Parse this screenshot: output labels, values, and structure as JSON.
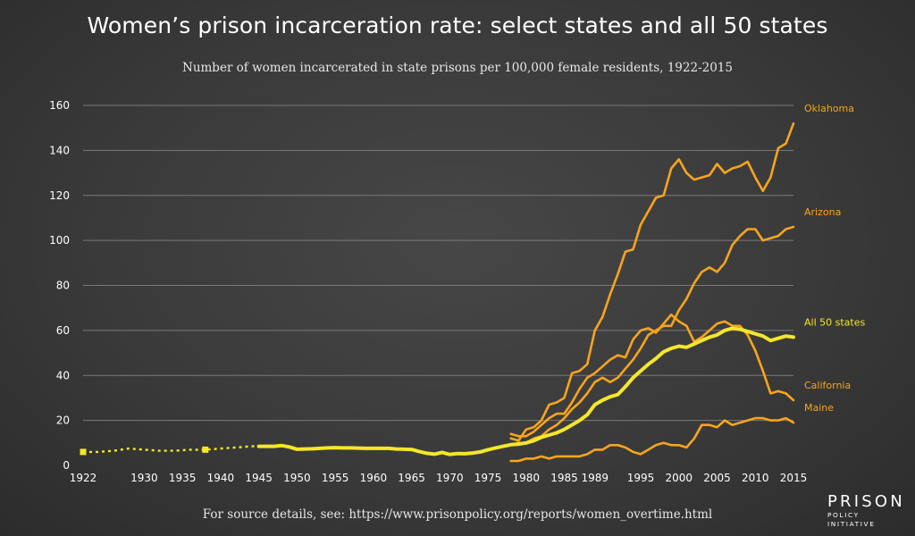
{
  "chart_title": "Women’s prison incarceration rate: select states and all 50 states",
  "chart_subtitle": "Number of women incarcerated in state prisons per 100,000 female residents, 1922-2015",
  "source_note": "For source details, see: https://www.prisonpolicy.org/reports/women_overtime.html",
  "logo": {
    "main": "PRISON",
    "sub": "POLICY INITIATIVE"
  },
  "colors": {
    "all_states": "#f5e72a",
    "states": "#f7a51c",
    "grid": "#7a7a7a"
  },
  "chart_data": {
    "type": "line",
    "xlim": [
      1922,
      2015
    ],
    "ylim": [
      0,
      160
    ],
    "grid": true,
    "x_ticks": [
      1922,
      1930,
      1935,
      1940,
      1945,
      1950,
      1955,
      1960,
      1965,
      1970,
      1975,
      1980,
      1985,
      1989,
      1995,
      2000,
      2005,
      2010,
      2015
    ],
    "y_ticks": [
      0,
      20,
      40,
      60,
      80,
      100,
      120,
      140,
      160
    ],
    "legend": "direct labels at line ends",
    "all_states_gap_markers": [
      [
        1922,
        6
      ],
      [
        1938,
        7
      ]
    ],
    "series": [
      {
        "name": "Oklahoma",
        "key": "states",
        "data": [
          [
            1978,
            12
          ],
          [
            1979,
            11
          ],
          [
            1980,
            16
          ],
          [
            1981,
            17
          ],
          [
            1982,
            20
          ],
          [
            1983,
            27
          ],
          [
            1984,
            28
          ],
          [
            1985,
            30
          ],
          [
            1986,
            41
          ],
          [
            1987,
            42
          ],
          [
            1988,
            45
          ],
          [
            1989,
            60
          ],
          [
            1990,
            66
          ],
          [
            1991,
            76
          ],
          [
            1992,
            85
          ],
          [
            1993,
            95
          ],
          [
            1994,
            96
          ],
          [
            1995,
            107
          ],
          [
            1996,
            113
          ],
          [
            1997,
            119
          ],
          [
            1998,
            120
          ],
          [
            1999,
            132
          ],
          [
            2000,
            136
          ],
          [
            2001,
            130
          ],
          [
            2002,
            127
          ],
          [
            2003,
            128
          ],
          [
            2004,
            129
          ],
          [
            2005,
            134
          ],
          [
            2006,
            130
          ],
          [
            2007,
            132
          ],
          [
            2008,
            133
          ],
          [
            2009,
            135
          ],
          [
            2010,
            128
          ],
          [
            2011,
            122
          ],
          [
            2012,
            128
          ],
          [
            2013,
            141
          ],
          [
            2014,
            143
          ],
          [
            2015,
            152
          ]
        ]
      },
      {
        "name": "Arizona",
        "key": "states",
        "data": [
          [
            1978,
            9
          ],
          [
            1979,
            10
          ],
          [
            1980,
            10
          ],
          [
            1981,
            12
          ],
          [
            1982,
            13
          ],
          [
            1983,
            16
          ],
          [
            1984,
            18
          ],
          [
            1985,
            21
          ],
          [
            1986,
            25
          ],
          [
            1987,
            28
          ],
          [
            1988,
            32
          ],
          [
            1989,
            37
          ],
          [
            1990,
            39
          ],
          [
            1991,
            37
          ],
          [
            1992,
            39
          ],
          [
            1993,
            43
          ],
          [
            1994,
            47
          ],
          [
            1995,
            52
          ],
          [
            1996,
            58
          ],
          [
            1997,
            60
          ],
          [
            1998,
            62
          ],
          [
            1999,
            62
          ],
          [
            2000,
            69
          ],
          [
            2001,
            74
          ],
          [
            2002,
            81
          ],
          [
            2003,
            86
          ],
          [
            2004,
            88
          ],
          [
            2005,
            86
          ],
          [
            2006,
            90
          ],
          [
            2007,
            98
          ],
          [
            2008,
            102
          ],
          [
            2009,
            105
          ],
          [
            2010,
            105
          ],
          [
            2011,
            100
          ],
          [
            2012,
            101
          ],
          [
            2013,
            102
          ],
          [
            2014,
            105
          ],
          [
            2015,
            106
          ]
        ]
      },
      {
        "name": "California",
        "key": "states",
        "data": [
          [
            1978,
            14
          ],
          [
            1979,
            13
          ],
          [
            1980,
            13
          ],
          [
            1981,
            15
          ],
          [
            1982,
            18
          ],
          [
            1983,
            21
          ],
          [
            1984,
            23
          ],
          [
            1985,
            23
          ],
          [
            1986,
            28
          ],
          [
            1987,
            34
          ],
          [
            1988,
            39
          ],
          [
            1989,
            41
          ],
          [
            1990,
            44
          ],
          [
            1991,
            47
          ],
          [
            1992,
            49
          ],
          [
            1993,
            48
          ],
          [
            1994,
            56
          ],
          [
            1995,
            60
          ],
          [
            1996,
            61
          ],
          [
            1997,
            59
          ],
          [
            1998,
            63
          ],
          [
            1999,
            67
          ],
          [
            2000,
            64
          ],
          [
            2001,
            62
          ],
          [
            2002,
            55
          ],
          [
            2003,
            57
          ],
          [
            2004,
            60
          ],
          [
            2005,
            63
          ],
          [
            2006,
            64
          ],
          [
            2007,
            62
          ],
          [
            2008,
            62
          ],
          [
            2009,
            58
          ],
          [
            2010,
            51
          ],
          [
            2011,
            42
          ],
          [
            2012,
            32
          ],
          [
            2013,
            33
          ],
          [
            2014,
            32
          ],
          [
            2015,
            29
          ]
        ]
      },
      {
        "name": "Maine",
        "key": "states",
        "data": [
          [
            1978,
            2
          ],
          [
            1979,
            2
          ],
          [
            1980,
            3
          ],
          [
            1981,
            3
          ],
          [
            1982,
            4
          ],
          [
            1983,
            3
          ],
          [
            1984,
            4
          ],
          [
            1985,
            4
          ],
          [
            1986,
            4
          ],
          [
            1987,
            4
          ],
          [
            1988,
            5
          ],
          [
            1989,
            7
          ],
          [
            1990,
            7
          ],
          [
            1991,
            9
          ],
          [
            1992,
            9
          ],
          [
            1993,
            8
          ],
          [
            1994,
            6
          ],
          [
            1995,
            5
          ],
          [
            1996,
            7
          ],
          [
            1997,
            9
          ],
          [
            1998,
            10
          ],
          [
            1999,
            9
          ],
          [
            2000,
            9
          ],
          [
            2001,
            8
          ],
          [
            2002,
            12
          ],
          [
            2003,
            18
          ],
          [
            2004,
            18
          ],
          [
            2005,
            17
          ],
          [
            2006,
            20
          ],
          [
            2007,
            18
          ],
          [
            2008,
            19
          ],
          [
            2009,
            20
          ],
          [
            2010,
            21
          ],
          [
            2011,
            21
          ],
          [
            2012,
            20
          ],
          [
            2013,
            20
          ],
          [
            2014,
            21
          ],
          [
            2015,
            19
          ]
        ]
      },
      {
        "name": "All 50 states",
        "key": "all_states",
        "dashed_until": 1945,
        "data": [
          [
            1922,
            6
          ],
          [
            1924,
            6
          ],
          [
            1926,
            6.5
          ],
          [
            1928,
            7.5
          ],
          [
            1930,
            7
          ],
          [
            1932,
            6.5
          ],
          [
            1934,
            6.5
          ],
          [
            1936,
            7
          ],
          [
            1938,
            7
          ],
          [
            1940,
            7.5
          ],
          [
            1942,
            8
          ],
          [
            1944,
            8.5
          ],
          [
            1945,
            8.5
          ],
          [
            1946,
            8.5
          ],
          [
            1947,
            8.5
          ],
          [
            1948,
            8.8
          ],
          [
            1949,
            8.2
          ],
          [
            1950,
            7.2
          ],
          [
            1951,
            7.3
          ],
          [
            1952,
            7.4
          ],
          [
            1953,
            7.6
          ],
          [
            1954,
            7.8
          ],
          [
            1955,
            7.9
          ],
          [
            1956,
            7.8
          ],
          [
            1957,
            7.8
          ],
          [
            1958,
            7.7
          ],
          [
            1959,
            7.6
          ],
          [
            1960,
            7.6
          ],
          [
            1961,
            7.6
          ],
          [
            1962,
            7.6
          ],
          [
            1963,
            7.3
          ],
          [
            1964,
            7.2
          ],
          [
            1965,
            7.1
          ],
          [
            1966,
            6.2
          ],
          [
            1967,
            5.4
          ],
          [
            1968,
            5.0
          ],
          [
            1969,
            5.8
          ],
          [
            1970,
            4.9
          ],
          [
            1971,
            5.3
          ],
          [
            1972,
            5.2
          ],
          [
            1973,
            5.5
          ],
          [
            1974,
            6
          ],
          [
            1975,
            7
          ],
          [
            1976,
            7.8
          ],
          [
            1977,
            8.5
          ],
          [
            1978,
            9.2
          ],
          [
            1979,
            9.5
          ],
          [
            1980,
            10
          ],
          [
            1981,
            11
          ],
          [
            1982,
            12.5
          ],
          [
            1983,
            13.5
          ],
          [
            1984,
            14.5
          ],
          [
            1985,
            16
          ],
          [
            1986,
            18
          ],
          [
            1987,
            20
          ],
          [
            1988,
            22.5
          ],
          [
            1989,
            27
          ],
          [
            1990,
            29
          ],
          [
            1991,
            30.5
          ],
          [
            1992,
            31.5
          ],
          [
            1993,
            35
          ],
          [
            1994,
            39
          ],
          [
            1995,
            42
          ],
          [
            1996,
            45
          ],
          [
            1997,
            47.5
          ],
          [
            1998,
            50.5
          ],
          [
            1999,
            52
          ],
          [
            2000,
            53
          ],
          [
            2001,
            52.5
          ],
          [
            2002,
            54
          ],
          [
            2003,
            55.5
          ],
          [
            2004,
            57
          ],
          [
            2005,
            58
          ],
          [
            2006,
            60
          ],
          [
            2007,
            61
          ],
          [
            2008,
            60.5
          ],
          [
            2009,
            59.5
          ],
          [
            2010,
            58.5
          ],
          [
            2011,
            57.5
          ],
          [
            2012,
            55.5
          ],
          [
            2013,
            56.5
          ],
          [
            2014,
            57.5
          ],
          [
            2015,
            57
          ]
        ]
      }
    ]
  }
}
